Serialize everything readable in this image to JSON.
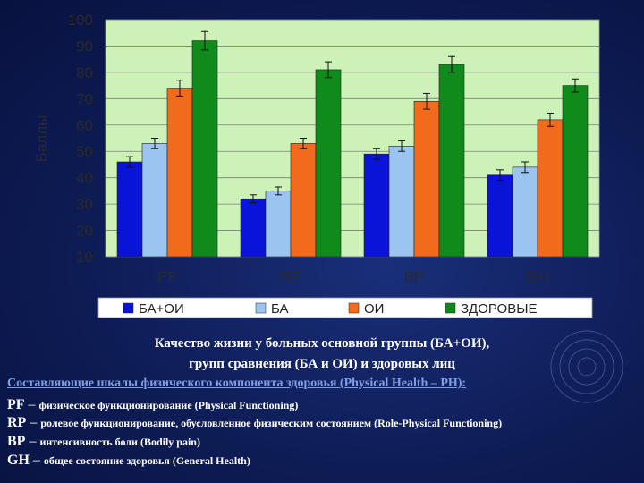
{
  "chart_data": {
    "type": "bar",
    "ylabel": "Баллы",
    "ylim": [
      10,
      100
    ],
    "yticks": [
      10,
      20,
      30,
      40,
      50,
      60,
      70,
      80,
      90,
      100
    ],
    "categories": [
      "PF",
      "RP",
      "BP",
      "GH"
    ],
    "grid": true,
    "legend_position": "bottom",
    "series": [
      {
        "name": "БА+ОИ",
        "color": "#0a14d8",
        "values": [
          46,
          32,
          49,
          41
        ],
        "errors": [
          2,
          1.5,
          2,
          2
        ]
      },
      {
        "name": "БА",
        "color": "#9cc4f0",
        "values": [
          53,
          35,
          52,
          44
        ],
        "errors": [
          2,
          1.5,
          2,
          2
        ]
      },
      {
        "name": "ОИ",
        "color": "#f26a1b",
        "values": [
          74,
          53,
          69,
          62
        ],
        "errors": [
          3,
          2,
          3,
          2.5
        ]
      },
      {
        "name": "ЗДОРОВЫЕ",
        "color": "#118a1c",
        "values": [
          92,
          81,
          83,
          75
        ],
        "errors": [
          3.5,
          3,
          3,
          2.5
        ]
      }
    ]
  },
  "caption": {
    "line1": "Качество жизни у больных основной группы (БА+ОИ),",
    "line2": "групп сравнения (БА и ОИ) и здоровых лиц"
  },
  "components_heading": "Составляющие шкалы физического компонента здоровья (Physical Health – PH):",
  "definitions": [
    {
      "abbr": "PF",
      "desc": "физическое функционирование (Physical Functioning)"
    },
    {
      "abbr": "RP",
      "desc": "ролевое функционирование, обусловленное физическим состоянием (Role-Physical Functioning)"
    },
    {
      "abbr": "BP",
      "desc": "интенсивность боли (Bodily pain)"
    },
    {
      "abbr": "GH",
      "desc": "общее состояние здоровья (General Health)"
    }
  ]
}
